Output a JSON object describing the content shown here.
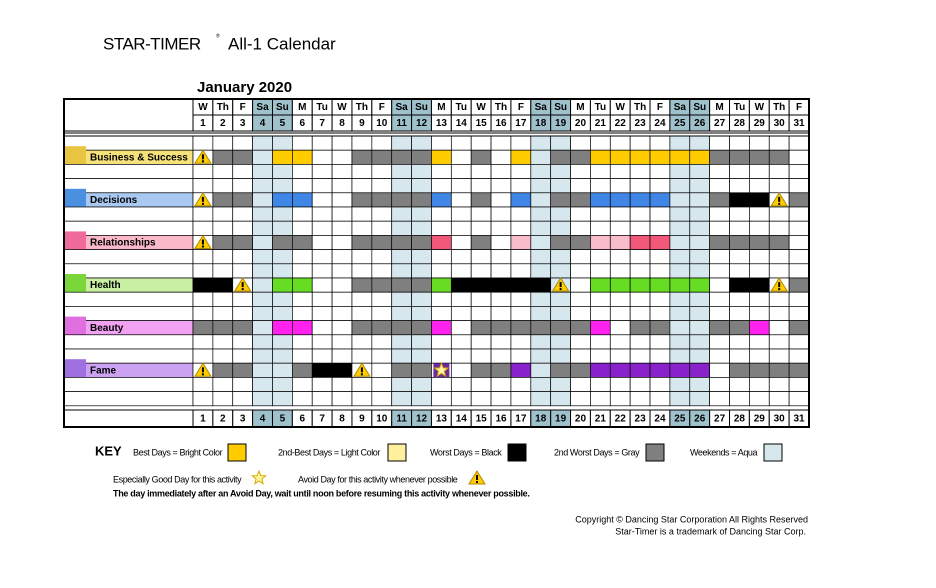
{
  "header": {
    "brand": "STAR-TIMER",
    "mark": "®",
    "title": "All-1 Calendar"
  },
  "month": "January 2020",
  "days": {
    "weekdays": [
      "W",
      "Th",
      "F",
      "Sa",
      "Su",
      "M",
      "Tu",
      "W",
      "Th",
      "F",
      "Sa",
      "Su",
      "M",
      "Tu",
      "W",
      "Th",
      "F",
      "Sa",
      "Su",
      "M",
      "Tu",
      "W",
      "Th",
      "F",
      "Sa",
      "Su",
      "M",
      "Tu",
      "W",
      "Th",
      "F"
    ],
    "numbers": [
      1,
      2,
      3,
      4,
      5,
      6,
      7,
      8,
      9,
      10,
      11,
      12,
      13,
      14,
      15,
      16,
      17,
      18,
      19,
      20,
      21,
      22,
      23,
      24,
      25,
      26,
      27,
      28,
      29,
      30,
      31
    ],
    "weekends": [
      4,
      5,
      11,
      12,
      18,
      19,
      25,
      26
    ]
  },
  "colors": {
    "weekend": "#d6e7ee",
    "weekend_header": "#9fc1cc",
    "gray": "#7f7f7f",
    "black": "#000000"
  },
  "activities": [
    {
      "label": "Business & Success",
      "label_color": "#f6e27a",
      "icon_color": "#e8c440",
      "best_color": "#ffcc00",
      "light_color": "#fff0a0",
      "cells": "AGG.YY..GGGGY.G.Y.GGYYYYYYGGGG."
    },
    {
      "label": "Decisions",
      "label_color": "#a9c9f2",
      "icon_color": "#4a8fe0",
      "best_color": "#3f86e6",
      "light_color": "#a9c9f2",
      "cells": "AGG.YY..GGGGY.G.Y.GGYYYY..GKKAG"
    },
    {
      "label": "Relationships",
      "label_color": "#f9b9c9",
      "icon_color": "#f06a9a",
      "best_color": "#f2587a",
      "light_color": "#f9bccb",
      "cells": "AGG.GG..GGGGY.G.L.GGLLYY..GGGG."
    },
    {
      "label": "Health",
      "label_color": "#c9f0a2",
      "icon_color": "#7ad63a",
      "best_color": "#66dd22",
      "light_color": "#c9f0a2",
      "cells": "KKA.YY..GGGGYKKKKKA.YYYYYY.KKAG"
    },
    {
      "label": "Beauty",
      "label_color": "#f2a2f2",
      "icon_color": "#e070e0",
      "best_color": "#ff22ee",
      "light_color": "#f8c0f8",
      "cells": "GGG.YY..GGGGY.GGGGGGY.GG..GGY.G"
    },
    {
      "label": "Fame",
      "label_color": "#cba2f2",
      "icon_color": "#a070e0",
      "best_color": "#8a22cc",
      "light_color": "#d8b8f2",
      "cells": "AGG..GKKA.GGS.GGY.GGYYYYYY.GGGG"
    }
  ],
  "key": {
    "title": "KEY",
    "items": [
      {
        "text": "Best Days = Bright Color",
        "color": "#ffcc00"
      },
      {
        "text": "2nd-Best Days = Light Color",
        "color": "#fff0a0"
      },
      {
        "text": "Worst Days = Black",
        "color": "#000000"
      },
      {
        "text": "2nd Worst Days = Gray",
        "color": "#7f7f7f"
      },
      {
        "text": "Weekends = Aqua",
        "color": "#d6e7ee"
      }
    ],
    "good": "Especially Good Day for this activity",
    "avoid": "Avoid Day for this activity whenever possible",
    "note": "The day immediately after an Avoid Day, wait until noon before resuming this activity whenever possible."
  },
  "footer": {
    "copyright": "Copyright © Dancing Star Corporation All Rights Reserved",
    "trademark": "Star-Timer is a trademark of Dancing Star Corp."
  }
}
